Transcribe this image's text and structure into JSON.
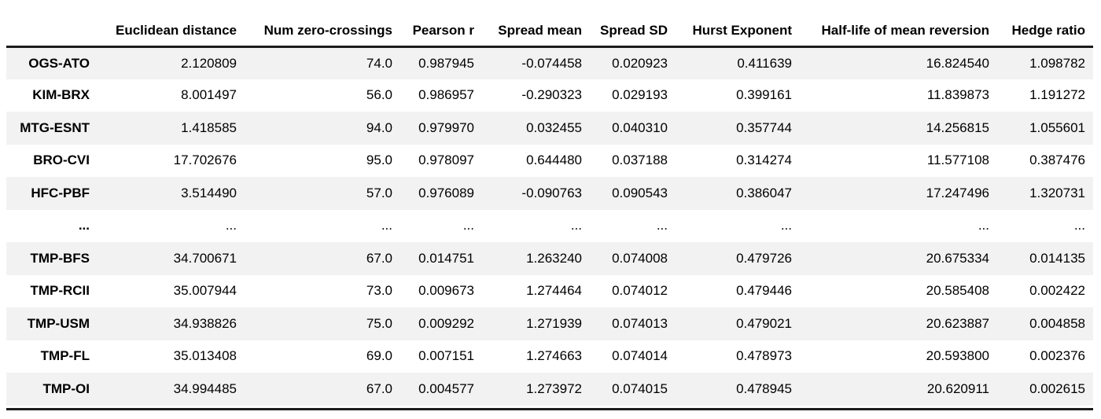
{
  "colors": {
    "row_stripe": "#f2f2f2",
    "rule": "#1c1c1c",
    "text": "#000000",
    "background": "#ffffff"
  },
  "chart_data": {
    "type": "table",
    "index_header": "",
    "columns": [
      "Euclidean distance",
      "Num zero-crossings",
      "Pearson r",
      "Spread mean",
      "Spread SD",
      "Hurst Exponent",
      "Half-life of mean reversion",
      "Hedge ratio"
    ],
    "rows": [
      {
        "label": "OGS-ATO",
        "values": [
          "2.120809",
          "74.0",
          "0.987945",
          "-0.074458",
          "0.020923",
          "0.411639",
          "16.824540",
          "1.098782"
        ]
      },
      {
        "label": "KIM-BRX",
        "values": [
          "8.001497",
          "56.0",
          "0.986957",
          "-0.290323",
          "0.029193",
          "0.399161",
          "11.839873",
          "1.191272"
        ]
      },
      {
        "label": "MTG-ESNT",
        "values": [
          "1.418585",
          "94.0",
          "0.979970",
          "0.032455",
          "0.040310",
          "0.357744",
          "14.256815",
          "1.055601"
        ]
      },
      {
        "label": "BRO-CVI",
        "values": [
          "17.702676",
          "95.0",
          "0.978097",
          "0.644480",
          "0.037188",
          "0.314274",
          "11.577108",
          "0.387476"
        ]
      },
      {
        "label": "HFC-PBF",
        "values": [
          "3.514490",
          "57.0",
          "0.976089",
          "-0.090763",
          "0.090543",
          "0.386047",
          "17.247496",
          "1.320731"
        ]
      },
      {
        "label": "...",
        "values": [
          "...",
          "...",
          "...",
          "...",
          "...",
          "...",
          "...",
          "..."
        ]
      },
      {
        "label": "TMP-BFS",
        "values": [
          "34.700671",
          "67.0",
          "0.014751",
          "1.263240",
          "0.074008",
          "0.479726",
          "20.675334",
          "0.014135"
        ]
      },
      {
        "label": "TMP-RCII",
        "values": [
          "35.007944",
          "73.0",
          "0.009673",
          "1.274464",
          "0.074012",
          "0.479446",
          "20.585408",
          "0.002422"
        ]
      },
      {
        "label": "TMP-USM",
        "values": [
          "34.938826",
          "75.0",
          "0.009292",
          "1.271939",
          "0.074013",
          "0.479021",
          "20.623887",
          "0.004858"
        ]
      },
      {
        "label": "TMP-FL",
        "values": [
          "35.013408",
          "69.0",
          "0.007151",
          "1.274663",
          "0.074014",
          "0.478973",
          "20.593800",
          "0.002376"
        ]
      },
      {
        "label": "TMP-OI",
        "values": [
          "34.994485",
          "67.0",
          "0.004577",
          "1.273972",
          "0.074015",
          "0.478945",
          "20.620911",
          "0.002615"
        ]
      }
    ]
  }
}
